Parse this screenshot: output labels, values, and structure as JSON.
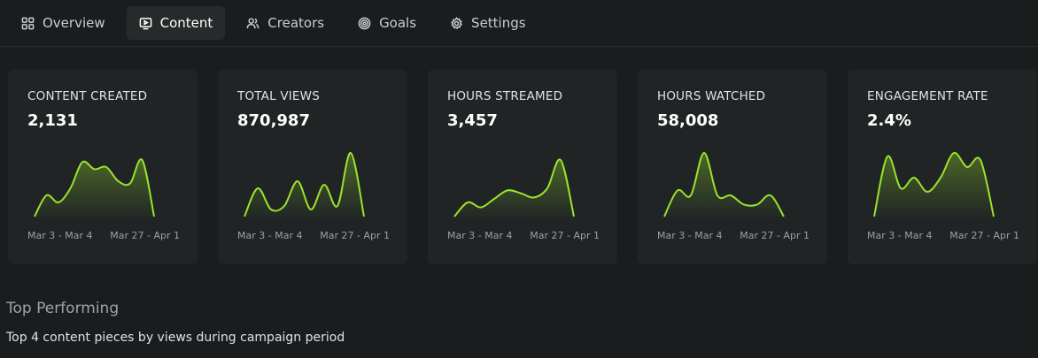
{
  "nav": {
    "tabs": [
      {
        "label": "Overview",
        "icon": "grid-icon",
        "active": false
      },
      {
        "label": "Content",
        "icon": "play-screen-icon",
        "active": true
      },
      {
        "label": "Creators",
        "icon": "users-icon",
        "active": false
      },
      {
        "label": "Goals",
        "icon": "target-icon",
        "active": false
      },
      {
        "label": "Settings",
        "icon": "gear-icon",
        "active": false
      }
    ]
  },
  "colors": {
    "accent": "#9be22d",
    "background": "#1a1d1e",
    "card": "#202425"
  },
  "metrics": [
    {
      "label": "CONTENT CREATED",
      "value": "2,131",
      "range_start": "Mar 3 - Mar 4",
      "range_end": "Mar 27 - Apr 1",
      "trend": [
        0.05,
        0.35,
        0.25,
        0.45,
        0.82,
        0.72,
        0.75,
        0.55,
        0.52,
        0.85,
        0.05
      ]
    },
    {
      "label": "TOTAL VIEWS",
      "value": "870,987",
      "range_start": "Mar 3 - Mar 4",
      "range_end": "Mar 27 - Apr 1",
      "trend": [
        0.05,
        0.45,
        0.15,
        0.2,
        0.55,
        0.15,
        0.5,
        0.2,
        0.95,
        0.05
      ]
    },
    {
      "label": "HOURS STREAMED",
      "value": "3,457",
      "range_start": "Mar 3 - Mar 4",
      "range_end": "Mar 27 - Apr 1",
      "trend": [
        0.05,
        0.25,
        0.18,
        0.3,
        0.42,
        0.38,
        0.32,
        0.45,
        0.85,
        0.05
      ]
    },
    {
      "label": "HOURS WATCHED",
      "value": "58,008",
      "range_start": "Mar 3 - Mar 4",
      "range_end": "Mar 27 - Apr 1",
      "trend": [
        0.05,
        0.42,
        0.35,
        0.95,
        0.35,
        0.35,
        0.22,
        0.22,
        0.35,
        0.05
      ]
    },
    {
      "label": "ENGAGEMENT RATE",
      "value": "2.4%",
      "range_start": "Mar 3 - Mar 4",
      "range_end": "Mar 27 - Apr 1",
      "trend": [
        0.05,
        0.9,
        0.45,
        0.6,
        0.4,
        0.6,
        0.95,
        0.75,
        0.85,
        0.05
      ]
    }
  ],
  "section": {
    "title": "Top Performing",
    "subtitle": "Top 4 content pieces by views during campaign period"
  }
}
